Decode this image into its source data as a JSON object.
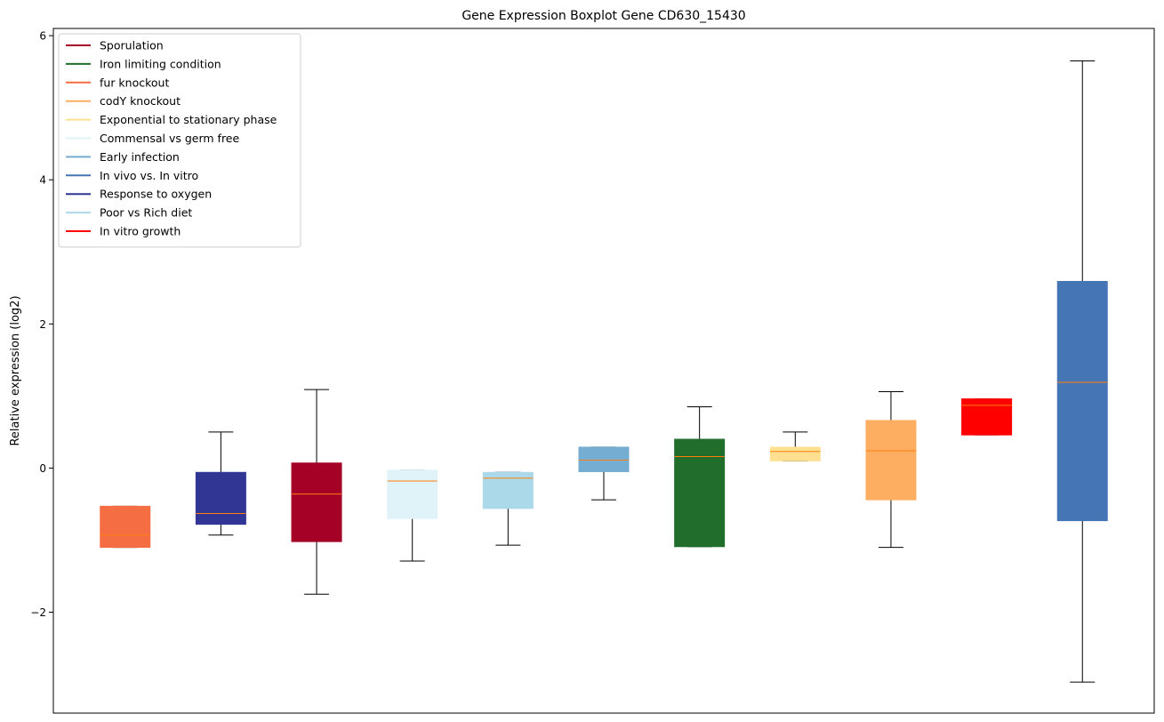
{
  "chart_data": {
    "type": "box",
    "title": "Gene Expression Boxplot Gene CD630_15430",
    "xlabel": "",
    "ylabel": "Relative expression (log2)",
    "ylim": [
      -3.4,
      6.1
    ],
    "yticks": [
      -2,
      0,
      2,
      4,
      6
    ],
    "ytick_labels": [
      "−2",
      "0",
      "2",
      "4",
      "6"
    ],
    "xticks_visible": false,
    "grid": false,
    "legend_position": "top-left",
    "median_color": "#ff7f0e",
    "legend": [
      {
        "label": "Sporulation",
        "color": "#a50026"
      },
      {
        "label": "Iron limiting condition",
        "color": "#216e2c"
      },
      {
        "label": "fur knockout",
        "color": "#f46d43"
      },
      {
        "label": "codY knockout",
        "color": "#fdae61"
      },
      {
        "label": "Exponential to stationary phase",
        "color": "#fee090"
      },
      {
        "label": "Commensal vs germ free",
        "color": "#e0f3f8"
      },
      {
        "label": "Early infection",
        "color": "#74add1"
      },
      {
        "label": "In vivo vs. In vitro",
        "color": "#4575b4"
      },
      {
        "label": "Response to oxygen",
        "color": "#313695"
      },
      {
        "label": "Poor vs Rich diet",
        "color": "#abd9e9"
      },
      {
        "label": "In vitro growth",
        "color": "#ff0000"
      }
    ],
    "boxes": [
      {
        "condition": "fur knockout",
        "color": "#f46d43",
        "whislo": -1.1,
        "q1": -1.1,
        "med": -0.93,
        "q3": -0.53,
        "whishi": -0.53
      },
      {
        "condition": "Response to oxygen",
        "color": "#313695",
        "whislo": -0.93,
        "q1": -0.78,
        "med": -0.63,
        "q3": -0.06,
        "whishi": 0.5
      },
      {
        "condition": "Sporulation",
        "color": "#a50026",
        "whislo": -1.75,
        "q1": -1.02,
        "med": -0.36,
        "q3": 0.07,
        "whishi": 1.09
      },
      {
        "condition": "Commensal vs germ free",
        "color": "#e0f3f8",
        "whislo": -1.29,
        "q1": -0.7,
        "med": -0.18,
        "q3": -0.03,
        "whishi": -0.03
      },
      {
        "condition": "Poor vs Rich diet",
        "color": "#abd9e9",
        "whislo": -1.07,
        "q1": -0.56,
        "med": -0.14,
        "q3": -0.06,
        "whishi": -0.06
      },
      {
        "condition": "Early infection",
        "color": "#74add1",
        "whislo": -0.44,
        "q1": -0.05,
        "med": 0.11,
        "q3": 0.29,
        "whishi": 0.29
      },
      {
        "condition": "Iron limiting condition",
        "color": "#216e2c",
        "whislo": -1.09,
        "q1": -1.09,
        "med": 0.16,
        "q3": 0.4,
        "whishi": 0.85
      },
      {
        "condition": "Exponential to stationary phase",
        "color": "#fee090",
        "whislo": 0.1,
        "q1": 0.1,
        "med": 0.23,
        "q3": 0.29,
        "whishi": 0.5
      },
      {
        "condition": "codY knockout",
        "color": "#fdae61",
        "whislo": -1.1,
        "q1": -0.44,
        "med": 0.24,
        "q3": 0.66,
        "whishi": 1.06
      },
      {
        "condition": "In vitro growth",
        "color": "#ff0000",
        "whislo": 0.46,
        "q1": 0.46,
        "med": 0.87,
        "q3": 0.96,
        "whishi": 0.96
      },
      {
        "condition": "In vivo vs. In vitro",
        "color": "#4575b4",
        "whislo": -2.97,
        "q1": -0.73,
        "med": 1.19,
        "q3": 2.59,
        "whishi": 5.65
      }
    ]
  }
}
